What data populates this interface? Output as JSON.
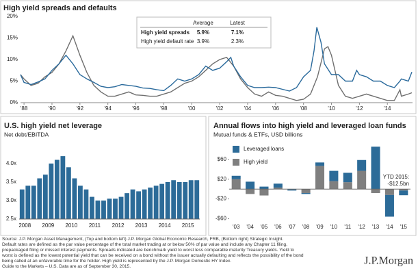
{
  "chart_data": [
    {
      "type": "line",
      "title": "High yield spreads and defaults",
      "xlim": [
        1987.75,
        2015.8
      ],
      "ylim": [
        0,
        20
      ],
      "grid": false,
      "xticks": [
        {
          "value": 1988,
          "label": "'88"
        },
        {
          "value": 1990,
          "label": "'90"
        },
        {
          "value": 1992,
          "label": "'92"
        },
        {
          "value": 1994,
          "label": "'94"
        },
        {
          "value": 1996,
          "label": "'96"
        },
        {
          "value": 1998,
          "label": "'98"
        },
        {
          "value": 2000,
          "label": "'00"
        },
        {
          "value": 2002,
          "label": "'02"
        },
        {
          "value": 2004,
          "label": "'04"
        },
        {
          "value": 2006,
          "label": "'06"
        },
        {
          "value": 2008,
          "label": "'08"
        },
        {
          "value": 2010,
          "label": "'10"
        },
        {
          "value": 2012,
          "label": "'12"
        },
        {
          "value": 2014,
          "label": "'14"
        }
      ],
      "yticks": [
        {
          "value": 0,
          "label": "0%"
        },
        {
          "value": 5,
          "label": "5%"
        },
        {
          "value": 10,
          "label": "10%"
        },
        {
          "value": 15,
          "label": "15%"
        },
        {
          "value": 20,
          "label": "20%"
        }
      ],
      "table_columns": [
        "Average",
        "Latest"
      ],
      "series": [
        {
          "name": "High yield spreads",
          "color": "#2a6a9c",
          "stats": [
            5.9,
            7.1
          ],
          "stats_labels": [
            "5.9%",
            "7.1%"
          ],
          "x": [
            1987.75,
            1988,
            1988.5,
            1989,
            1989.5,
            1990,
            1990.5,
            1991,
            1991.5,
            1992,
            1992.5,
            1993,
            1993.5,
            1994,
            1994.5,
            1995,
            1995.5,
            1996,
            1996.5,
            1997,
            1997.5,
            1998,
            1998.5,
            1999,
            1999.5,
            2000,
            2000.5,
            2001,
            2001.5,
            2002,
            2002.5,
            2002.8,
            2003,
            2003.5,
            2004,
            2004.5,
            2005,
            2005.5,
            2006,
            2006.5,
            2007,
            2007.5,
            2008,
            2008.5,
            2008.75,
            2008.95,
            2009.25,
            2009.5,
            2010,
            2010.5,
            2011,
            2011.5,
            2011.8,
            2012,
            2012.5,
            2013,
            2013.5,
            2014,
            2014.5,
            2014.9,
            2015,
            2015.5,
            2015.75
          ],
          "values": [
            6.5,
            4.7,
            4.2,
            4.8,
            5.5,
            7.5,
            9,
            11,
            9,
            6.5,
            5.5,
            4.7,
            3.8,
            3.5,
            3.7,
            4.2,
            4,
            3.8,
            3.4,
            3.3,
            3,
            2.8,
            4,
            5.5,
            5,
            5.5,
            6.5,
            8.5,
            7.5,
            8,
            9.5,
            10.5,
            8.5,
            6,
            4,
            3.5,
            3.5,
            3.6,
            3.5,
            3.1,
            2.7,
            3.5,
            6,
            7.5,
            12,
            17.5,
            14,
            9,
            6.5,
            6.5,
            5,
            5,
            7.5,
            6.5,
            6,
            5,
            5,
            4,
            3.5,
            5,
            5.5,
            5,
            7.1
          ]
        },
        {
          "name": "High yield default rate",
          "color": "#6f6f6f",
          "stats": [
            3.9,
            2.3
          ],
          "stats_labels": [
            "3.9%",
            "2.3%"
          ],
          "x": [
            1987.75,
            1988,
            1988.5,
            1989,
            1989.5,
            1990,
            1990.5,
            1991,
            1991.5,
            1992,
            1992.5,
            1993,
            1993.5,
            1994,
            1994.5,
            1995,
            1995.5,
            1996,
            1996.5,
            1997,
            1997.5,
            1998,
            1998.5,
            1999,
            1999.5,
            2000,
            2000.5,
            2001,
            2001.5,
            2002,
            2002.5,
            2003,
            2003.5,
            2004,
            2004.5,
            2005,
            2005.5,
            2006,
            2006.5,
            2007,
            2007.5,
            2008,
            2008.5,
            2009,
            2009.5,
            2009.75,
            2010,
            2010.5,
            2011,
            2011.5,
            2012,
            2012.5,
            2013,
            2013.5,
            2014,
            2014.5,
            2014.9,
            2015,
            2015.5,
            2015.75
          ],
          "values": [
            6.5,
            5.5,
            4,
            4.5,
            6,
            7,
            9,
            12,
            15.5,
            11,
            7,
            4,
            2.5,
            1.5,
            1.5,
            2,
            2.5,
            1.8,
            1.7,
            1.5,
            1.5,
            2,
            2.5,
            3.5,
            4.5,
            5,
            6,
            7.5,
            9,
            10,
            10.5,
            8.5,
            5.5,
            3.5,
            2,
            1.5,
            2.5,
            1.7,
            1.5,
            1,
            0.5,
            0.8,
            2,
            6,
            12.5,
            13,
            11,
            4,
            1.5,
            1,
            1.5,
            2,
            1.5,
            1,
            0.5,
            0.5,
            3,
            1.5,
            2,
            2.3
          ]
        }
      ]
    },
    {
      "type": "bar",
      "title": "U.S. high yield net leverage",
      "subtitle": "Net debt/EBITDA",
      "color": "#2c6b98",
      "grid": false,
      "categories": [
        "2008",
        null,
        null,
        null,
        "2009",
        null,
        null,
        null,
        "2010",
        null,
        null,
        null,
        "2011",
        null,
        null,
        null,
        "2012",
        null,
        null,
        null,
        "2013",
        null,
        null,
        null,
        "2014",
        null,
        null,
        null,
        "2015",
        null,
        null
      ],
      "values": [
        3.3,
        3.4,
        3.4,
        3.6,
        3.7,
        4.0,
        4.1,
        4.2,
        3.9,
        3.6,
        3.4,
        3.3,
        3.1,
        3.0,
        3.0,
        3.05,
        3.05,
        3.1,
        3.2,
        3.3,
        3.25,
        3.3,
        3.35,
        3.4,
        3.45,
        3.5,
        3.55,
        3.5,
        3.5,
        3.55,
        3.55
      ],
      "ylim": [
        2.5,
        4.35
      ],
      "yticks": [
        {
          "value": 2.5,
          "label": "2.5x"
        },
        {
          "value": 3.0,
          "label": "3.0x"
        },
        {
          "value": 3.5,
          "label": "3.5x"
        },
        {
          "value": 4.0,
          "label": "4.0x"
        }
      ]
    },
    {
      "type": "stacked_bar",
      "title": "Annual flows into high yield and leveraged loan funds",
      "subtitle": "Mutual funds & ETFs, USD billions",
      "categories": [
        "'03",
        "'04",
        "'05",
        "'06",
        "'07",
        "'08",
        "'09",
        "'10",
        "'11",
        "'12",
        "'13",
        "'14",
        "'15"
      ],
      "series": [
        {
          "name": "Leveraged loans",
          "color": "#2c6b98",
          "values": [
            7,
            15,
            5,
            8,
            -2,
            -2,
            7,
            21,
            19,
            22,
            86,
            -44,
            -9.5
          ]
        },
        {
          "name": "High yield",
          "color": "#7f7f7f",
          "values": [
            20,
            -10,
            -13,
            3,
            -1,
            -8,
            47,
            16,
            14,
            37,
            -8,
            -12,
            -3
          ]
        }
      ],
      "ylim": [
        -65,
        92
      ],
      "grid": false,
      "legend": "upper left",
      "yticks": [
        {
          "value": 60,
          "label": "$60"
        },
        {
          "value": 20,
          "label": "$20"
        },
        {
          "value": -20,
          "label": "-$20"
        },
        {
          "value": -60,
          "label": "-$60"
        }
      ],
      "annotation": [
        "YTD 2015:",
        "-$12.5bn"
      ]
    }
  ],
  "footer": {
    "lines": [
      "Source: J.P. Morgan Asset Management, (Top and bottom left) J.P. Morgan Global Economic Research, FRB, (Bottom right) Strategic Insight.",
      "Default rates are defined as the par value percentage of the total market trading at or below 50% of par value and include any Chapter 11 filing,",
      "prepackaged filing or missed interest payments. Spreads indicated are benchmark yield to worst less comparable maturity Treasury yields. Yield to",
      "worst is defined as the lowest potential yield that can be received on a bond without the issuer actually defaulting and reflects the possibility of the bond",
      "being called at an unfavorable time for the holder. High yield is represented by the J.P. Morgan Domestic HY Index.",
      "Guide to the Markets – U.S. Data are as of September 30, 2015."
    ],
    "logo": "J.P.Morgan"
  }
}
